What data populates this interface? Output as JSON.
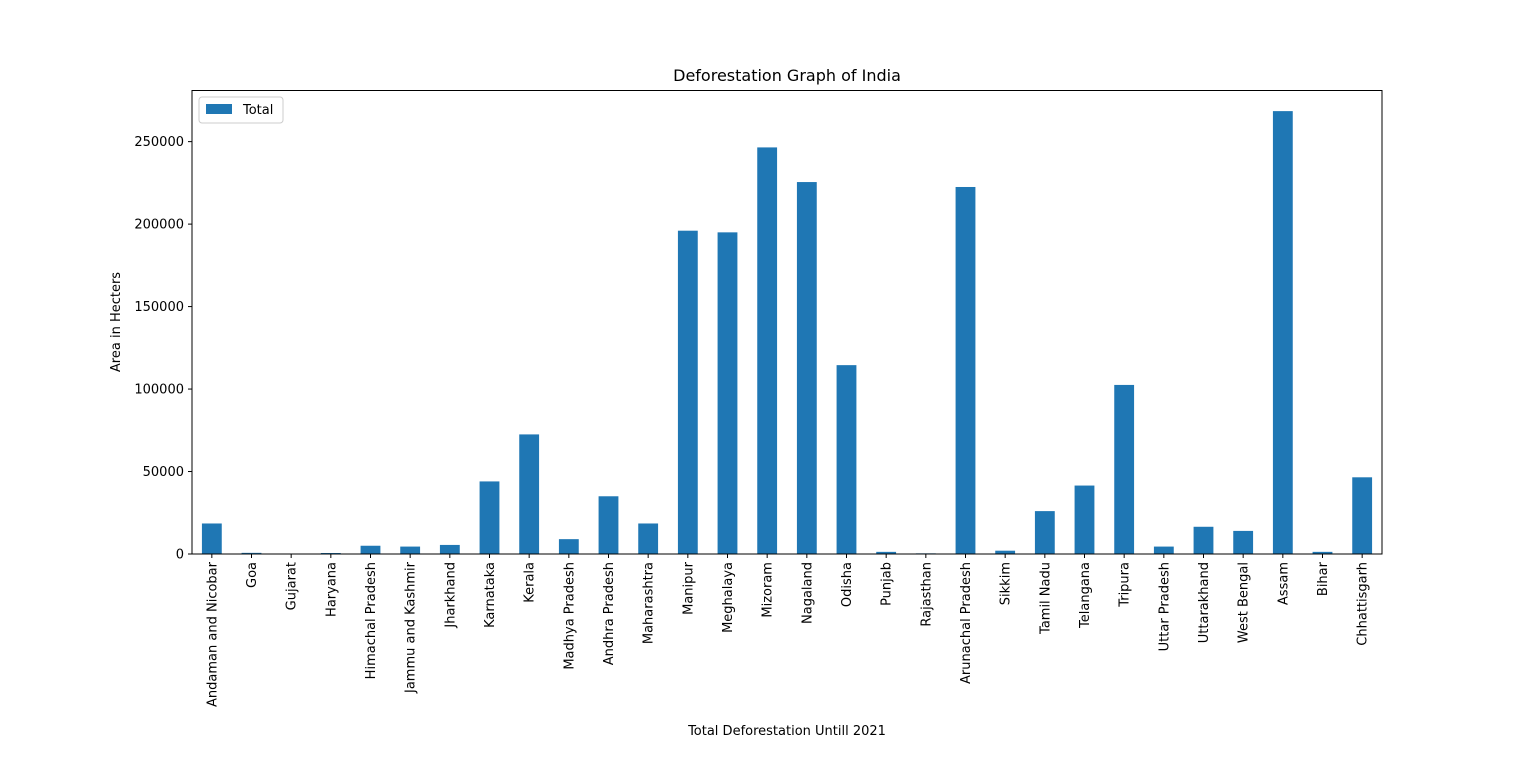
{
  "chart_data": {
    "type": "bar",
    "title": "Deforestation Graph of India",
    "xlabel": "Total Deforestation Untill 2021",
    "ylabel": "Area in Hecters",
    "ylim": [
      0,
      281000
    ],
    "yticks": [
      0,
      50000,
      100000,
      150000,
      200000,
      250000
    ],
    "ytick_labels": [
      "0",
      "50000",
      "100000",
      "150000",
      "200000",
      "250000"
    ],
    "grid": false,
    "legend_position": "top-left",
    "bar_color": "#1f77b4",
    "categories": [
      "Andaman and Nicobar",
      "Goa",
      "Gujarat",
      "Haryana",
      "Himachal Pradesh",
      "Jammu and Kashmir",
      "Jharkhand",
      "Karnataka",
      "Kerala",
      "Madhya Pradesh",
      "Andhra Pradesh",
      "Maharashtra",
      "Manipur",
      "Meghalaya",
      "Mizoram",
      "Nagaland",
      "Odisha",
      "Punjab",
      "Rajasthan",
      "Arunachal Pradesh",
      "Sikkim",
      "Tamil Nadu",
      "Telangana",
      "Tripura",
      "Uttar Pradesh",
      "Uttarakhand",
      "West Bengal",
      "Assam",
      "Bihar",
      "Chhattisgarh"
    ],
    "series": [
      {
        "name": "Total",
        "values": [
          18500,
          700,
          200,
          600,
          5000,
          4500,
          5500,
          44000,
          72500,
          9000,
          35000,
          18500,
          196000,
          195000,
          246500,
          225500,
          114500,
          1300,
          400,
          222500,
          2000,
          26000,
          41500,
          102500,
          4500,
          16500,
          14000,
          268500,
          1300,
          46500
        ]
      }
    ]
  }
}
